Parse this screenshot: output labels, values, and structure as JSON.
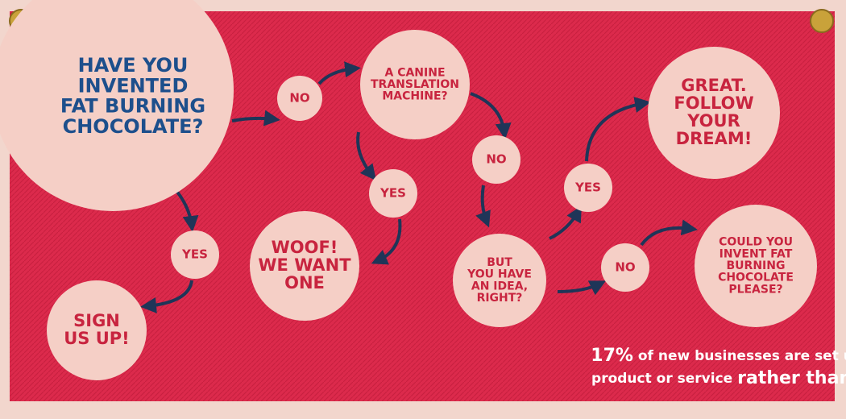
{
  "nodes": [
    {
      "lines": [
        "HAVE YOU",
        "INVENTED",
        "FAT BURNING",
        "CHOCOLATE?"
      ]
    },
    {
      "lines": [
        "NO"
      ]
    },
    {
      "lines": [
        "A CANINE",
        "TRANSLATION",
        "MACHINE?"
      ]
    },
    {
      "lines": [
        "YES"
      ]
    },
    {
      "lines": [
        "NO"
      ]
    },
    {
      "lines": [
        "WOOF!",
        "WE WANT",
        "ONE"
      ]
    },
    {
      "lines": [
        "YES"
      ]
    },
    {
      "lines": [
        "SIGN",
        "US UP!"
      ]
    },
    {
      "lines": [
        "YES"
      ]
    },
    {
      "lines": [
        "GREAT.",
        "FOLLOW",
        "YOUR",
        "DREAM!"
      ]
    },
    {
      "lines": [
        "BUT",
        "YOU HAVE",
        "AN IDEA,",
        "RIGHT?"
      ]
    },
    {
      "lines": [
        "NO"
      ]
    },
    {
      "lines": [
        "COULD YOU",
        "INVENT FAT",
        "BURNING",
        "CHOCOLATE",
        "PLEASE?"
      ]
    }
  ],
  "footer": {
    "lines": [
      [
        "17%",
        " of new businesses are set up to develop an existing"
      ],
      [
        "product or service ",
        "rather than launch a new one."
      ]
    ]
  }
}
